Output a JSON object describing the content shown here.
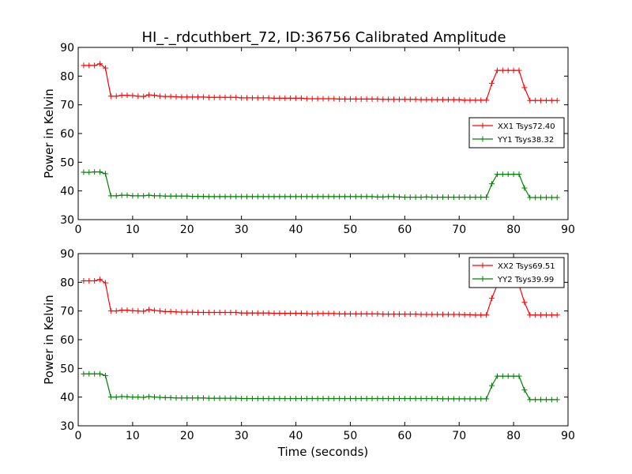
{
  "title": "HI_-_rdcuthbert_72, ID:36756 Calibrated Amplitude",
  "colors": {
    "red": "#ff0000",
    "green": "#008000"
  },
  "chart_data": [
    {
      "type": "line",
      "xlabel": "",
      "ylabel": "Power in Kelvin",
      "xlim": [
        0,
        90
      ],
      "ylim": [
        30,
        90
      ],
      "xticks": [
        0,
        10,
        20,
        30,
        40,
        50,
        60,
        70,
        80,
        90
      ],
      "yticks": [
        30,
        40,
        50,
        60,
        70,
        80,
        90
      ],
      "legend_position": "center-right",
      "series": [
        {
          "name": "XX1 Tsys72.40",
          "color": "#ff0000",
          "x": [
            1,
            2,
            3,
            4,
            5,
            6,
            7,
            8,
            9,
            10,
            11,
            12,
            13,
            14,
            15,
            16,
            17,
            18,
            19,
            20,
            21,
            22,
            23,
            24,
            25,
            26,
            27,
            28,
            29,
            30,
            31,
            32,
            33,
            34,
            35,
            36,
            37,
            38,
            39,
            40,
            41,
            42,
            43,
            44,
            45,
            46,
            47,
            48,
            49,
            50,
            51,
            52,
            53,
            54,
            55,
            56,
            57,
            58,
            59,
            60,
            61,
            62,
            63,
            64,
            65,
            66,
            67,
            68,
            69,
            70,
            71,
            72,
            73,
            74,
            75,
            76,
            77,
            78,
            79,
            80,
            81,
            82,
            83,
            84,
            85,
            86,
            87,
            88
          ],
          "values": [
            83.7,
            83.7,
            83.7,
            84.3,
            82.8,
            73.0,
            73.0,
            73.3,
            73.3,
            73.2,
            73.0,
            72.9,
            73.5,
            73.3,
            73.0,
            72.9,
            72.9,
            72.8,
            72.7,
            72.7,
            72.7,
            72.7,
            72.7,
            72.6,
            72.6,
            72.6,
            72.6,
            72.6,
            72.6,
            72.4,
            72.4,
            72.4,
            72.4,
            72.4,
            72.4,
            72.3,
            72.3,
            72.3,
            72.3,
            72.3,
            72.3,
            72.1,
            72.1,
            72.1,
            72.1,
            72.1,
            72.1,
            72.0,
            72.0,
            72.0,
            72.0,
            72.0,
            72.0,
            72.0,
            72.0,
            71.9,
            71.9,
            71.9,
            71.9,
            71.9,
            71.9,
            71.9,
            71.8,
            71.8,
            71.8,
            71.8,
            71.8,
            71.8,
            71.8,
            71.8,
            71.6,
            71.6,
            71.6,
            71.6,
            71.6,
            77.5,
            82.0,
            82.0,
            82.0,
            82.0,
            82.0,
            76.0,
            71.5,
            71.5,
            71.5,
            71.5,
            71.5,
            71.5
          ]
        },
        {
          "name": "YY1 Tsys38.32",
          "color": "#008000",
          "x": [
            1,
            2,
            3,
            4,
            5,
            6,
            7,
            8,
            9,
            10,
            11,
            12,
            13,
            14,
            15,
            16,
            17,
            18,
            19,
            20,
            21,
            22,
            23,
            24,
            25,
            26,
            27,
            28,
            29,
            30,
            31,
            32,
            33,
            34,
            35,
            36,
            37,
            38,
            39,
            40,
            41,
            42,
            43,
            44,
            45,
            46,
            47,
            48,
            49,
            50,
            51,
            52,
            53,
            54,
            55,
            56,
            57,
            58,
            59,
            60,
            61,
            62,
            63,
            64,
            65,
            66,
            67,
            68,
            69,
            70,
            71,
            72,
            73,
            74,
            75,
            76,
            77,
            78,
            79,
            80,
            81,
            82,
            83,
            84,
            85,
            86,
            87,
            88
          ],
          "values": [
            46.5,
            46.5,
            46.6,
            46.6,
            46.0,
            38.3,
            38.3,
            38.5,
            38.5,
            38.3,
            38.3,
            38.3,
            38.5,
            38.3,
            38.3,
            38.2,
            38.2,
            38.2,
            38.2,
            38.2,
            38.1,
            38.1,
            38.1,
            38.0,
            38.0,
            38.0,
            38.0,
            38.0,
            38.0,
            38.0,
            38.0,
            38.0,
            38.0,
            38.0,
            38.0,
            38.0,
            38.0,
            38.0,
            38.0,
            38.0,
            38.0,
            38.0,
            38.0,
            38.0,
            38.0,
            38.0,
            38.0,
            38.0,
            38.0,
            38.0,
            38.0,
            38.0,
            38.0,
            38.0,
            37.9,
            37.9,
            38.0,
            38.0,
            37.9,
            37.8,
            37.8,
            37.8,
            37.8,
            37.9,
            37.8,
            37.8,
            37.8,
            37.8,
            37.8,
            37.8,
            37.8,
            37.8,
            37.8,
            37.8,
            37.8,
            42.5,
            45.8,
            45.8,
            45.8,
            45.8,
            45.8,
            41.0,
            37.7,
            37.7,
            37.7,
            37.7,
            37.7,
            37.7
          ]
        }
      ]
    },
    {
      "type": "line",
      "xlabel": "Time (seconds)",
      "ylabel": "Power in Kelvin",
      "xlim": [
        0,
        90
      ],
      "ylim": [
        30,
        90
      ],
      "xticks": [
        0,
        10,
        20,
        30,
        40,
        50,
        60,
        70,
        80,
        90
      ],
      "yticks": [
        30,
        40,
        50,
        60,
        70,
        80,
        90
      ],
      "legend_position": "top-right",
      "series": [
        {
          "name": "XX2 Tsys69.51",
          "color": "#ff0000",
          "x": [
            1,
            2,
            3,
            4,
            5,
            6,
            7,
            8,
            9,
            10,
            11,
            12,
            13,
            14,
            15,
            16,
            17,
            18,
            19,
            20,
            21,
            22,
            23,
            24,
            25,
            26,
            27,
            28,
            29,
            30,
            31,
            32,
            33,
            34,
            35,
            36,
            37,
            38,
            39,
            40,
            41,
            42,
            43,
            44,
            45,
            46,
            47,
            48,
            49,
            50,
            51,
            52,
            53,
            54,
            55,
            56,
            57,
            58,
            59,
            60,
            61,
            62,
            63,
            64,
            65,
            66,
            67,
            68,
            69,
            70,
            71,
            72,
            73,
            74,
            75,
            76,
            77,
            78,
            79,
            80,
            81,
            82,
            83,
            84,
            85,
            86,
            87,
            88
          ],
          "values": [
            80.5,
            80.5,
            80.5,
            81.0,
            79.8,
            70.0,
            70.0,
            70.3,
            70.3,
            70.1,
            70.0,
            69.9,
            70.5,
            70.2,
            70.0,
            69.8,
            69.8,
            69.7,
            69.6,
            69.6,
            69.6,
            69.5,
            69.5,
            69.5,
            69.5,
            69.5,
            69.5,
            69.5,
            69.5,
            69.3,
            69.3,
            69.3,
            69.3,
            69.3,
            69.3,
            69.2,
            69.2,
            69.2,
            69.2,
            69.2,
            69.2,
            69.1,
            69.0,
            69.1,
            69.1,
            69.1,
            69.1,
            69.0,
            69.0,
            69.0,
            69.0,
            69.0,
            69.0,
            69.0,
            69.0,
            68.9,
            68.9,
            68.9,
            68.9,
            68.9,
            68.9,
            68.9,
            68.8,
            68.8,
            68.8,
            68.8,
            68.8,
            68.8,
            68.8,
            68.8,
            68.7,
            68.7,
            68.6,
            68.6,
            68.6,
            74.5,
            79.0,
            79.0,
            79.0,
            79.0,
            79.0,
            73.0,
            68.6,
            68.6,
            68.6,
            68.6,
            68.6,
            68.6
          ]
        },
        {
          "name": "YY2 Tsys39.99",
          "color": "#008000",
          "x": [
            1,
            2,
            3,
            4,
            5,
            6,
            7,
            8,
            9,
            10,
            11,
            12,
            13,
            14,
            15,
            16,
            17,
            18,
            19,
            20,
            21,
            22,
            23,
            24,
            25,
            26,
            27,
            28,
            29,
            30,
            31,
            32,
            33,
            34,
            35,
            36,
            37,
            38,
            39,
            40,
            41,
            42,
            43,
            44,
            45,
            46,
            47,
            48,
            49,
            50,
            51,
            52,
            53,
            54,
            55,
            56,
            57,
            58,
            59,
            60,
            61,
            62,
            63,
            64,
            65,
            66,
            67,
            68,
            69,
            70,
            71,
            72,
            73,
            74,
            75,
            76,
            77,
            78,
            79,
            80,
            81,
            82,
            83,
            84,
            85,
            86,
            87,
            88
          ],
          "values": [
            48.1,
            48.1,
            48.1,
            48.1,
            47.5,
            40.0,
            40.0,
            40.2,
            40.1,
            40.0,
            40.0,
            39.9,
            40.2,
            40.0,
            39.9,
            39.8,
            39.8,
            39.7,
            39.7,
            39.7,
            39.7,
            39.7,
            39.7,
            39.6,
            39.6,
            39.6,
            39.6,
            39.6,
            39.6,
            39.5,
            39.5,
            39.5,
            39.5,
            39.5,
            39.5,
            39.5,
            39.5,
            39.5,
            39.5,
            39.5,
            39.5,
            39.5,
            39.5,
            39.5,
            39.5,
            39.5,
            39.5,
            39.5,
            39.5,
            39.5,
            39.5,
            39.5,
            39.5,
            39.5,
            39.5,
            39.5,
            39.5,
            39.5,
            39.5,
            39.5,
            39.5,
            39.5,
            39.5,
            39.5,
            39.5,
            39.5,
            39.4,
            39.4,
            39.4,
            39.4,
            39.4,
            39.4,
            39.4,
            39.4,
            39.4,
            44.0,
            47.3,
            47.3,
            47.3,
            47.3,
            47.3,
            42.5,
            39.1,
            39.1,
            39.1,
            39.1,
            39.1,
            39.1
          ]
        }
      ]
    }
  ]
}
